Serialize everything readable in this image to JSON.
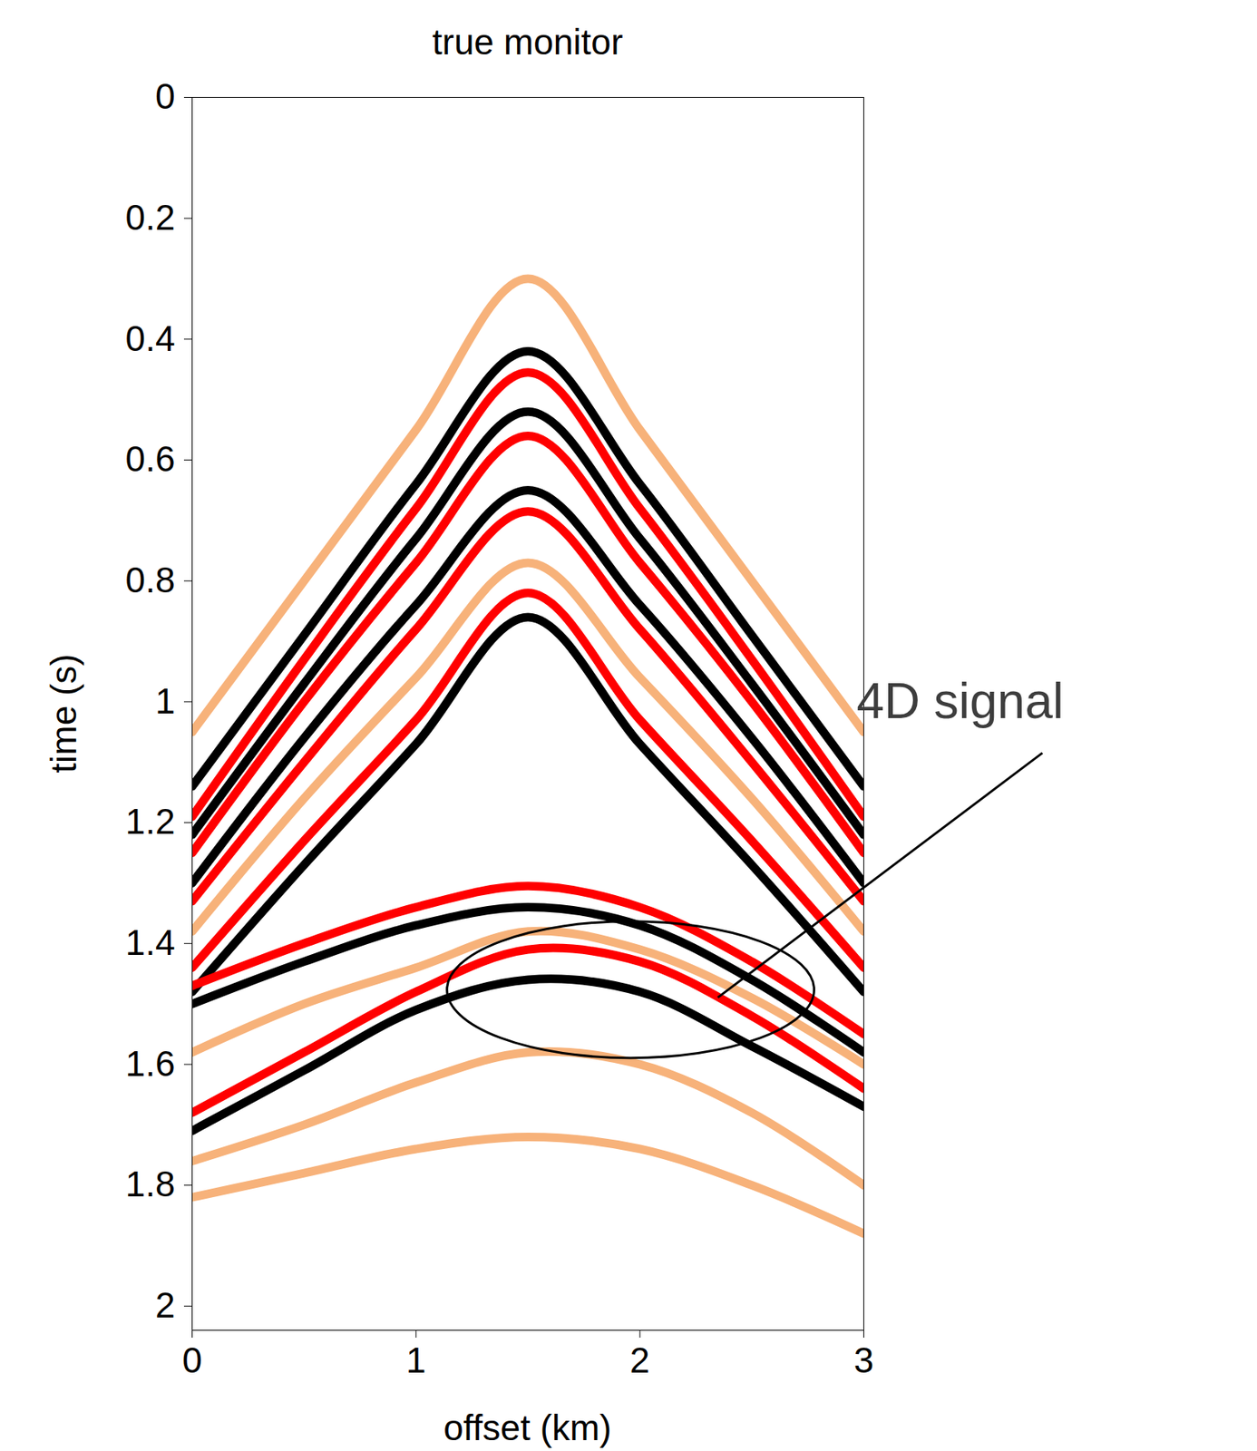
{
  "chart_data": {
    "type": "seismic",
    "title": "true monitor",
    "xlabel": "offset (km)",
    "ylabel": "time (s)",
    "xlim": [
      0,
      3
    ],
    "ylim": [
      0,
      2.04
    ],
    "xticks": [
      0,
      1,
      2,
      3
    ],
    "yticks": [
      0,
      0.2,
      0.4,
      0.6,
      0.8,
      1,
      1.2,
      1.4,
      1.6,
      1.8,
      2
    ],
    "x": [
      0,
      0.5,
      1,
      1.5,
      2,
      2.5,
      3
    ],
    "series": [
      {
        "color": "#f7b27a",
        "values": [
          1.05,
          0.8,
          0.55,
          0.3,
          0.55,
          0.8,
          1.05
        ]
      },
      {
        "color": "#f7b27a",
        "values": [
          1.38,
          1.16,
          0.96,
          0.77,
          0.96,
          1.16,
          1.38
        ]
      },
      {
        "color": "#f7b27a",
        "values": [
          1.58,
          1.5,
          1.44,
          1.38,
          1.41,
          1.49,
          1.6
        ]
      },
      {
        "color": "#f7b27a",
        "values": [
          1.76,
          1.7,
          1.63,
          1.58,
          1.6,
          1.68,
          1.8
        ]
      },
      {
        "color": "#f7b27a",
        "values": [
          1.82,
          1.78,
          1.74,
          1.72,
          1.74,
          1.8,
          1.88
        ]
      },
      {
        "color": "#000000",
        "values": [
          1.14,
          0.89,
          0.64,
          0.42,
          0.64,
          0.89,
          1.14
        ]
      },
      {
        "color": "#ff0000",
        "values": [
          1.19,
          0.93,
          0.68,
          0.455,
          0.68,
          0.93,
          1.19
        ]
      },
      {
        "color": "#000000",
        "values": [
          1.22,
          0.97,
          0.73,
          0.52,
          0.73,
          0.97,
          1.22
        ]
      },
      {
        "color": "#ff0000",
        "values": [
          1.25,
          1.0,
          0.77,
          0.56,
          0.77,
          1.0,
          1.25
        ]
      },
      {
        "color": "#000000",
        "values": [
          1.3,
          1.06,
          0.84,
          0.65,
          0.84,
          1.06,
          1.3
        ]
      },
      {
        "color": "#ff0000",
        "values": [
          1.33,
          1.1,
          0.88,
          0.685,
          0.88,
          1.1,
          1.33
        ]
      },
      {
        "color": "#ff0000",
        "values": [
          1.44,
          1.23,
          1.03,
          0.82,
          1.03,
          1.23,
          1.44
        ]
      },
      {
        "color": "#000000",
        "values": [
          1.48,
          1.27,
          1.07,
          0.86,
          1.07,
          1.27,
          1.48
        ]
      },
      {
        "color": "#ff0000",
        "values": [
          1.47,
          1.4,
          1.34,
          1.305,
          1.34,
          1.43,
          1.55
        ]
      },
      {
        "color": "#000000",
        "values": [
          1.5,
          1.43,
          1.37,
          1.34,
          1.37,
          1.46,
          1.58
        ]
      },
      {
        "color": "#ff0000",
        "values": [
          1.68,
          1.58,
          1.48,
          1.41,
          1.43,
          1.52,
          1.64
        ]
      },
      {
        "color": "#000000",
        "values": [
          1.71,
          1.61,
          1.51,
          1.46,
          1.48,
          1.57,
          1.67
        ]
      }
    ],
    "annotations": [
      {
        "text": "4D signal",
        "x": 2.35,
        "y": 1.49,
        "ellipse": {
          "x": 1.96,
          "y": 1.477,
          "rx": 0.82,
          "ry": 0.113
        }
      }
    ]
  }
}
